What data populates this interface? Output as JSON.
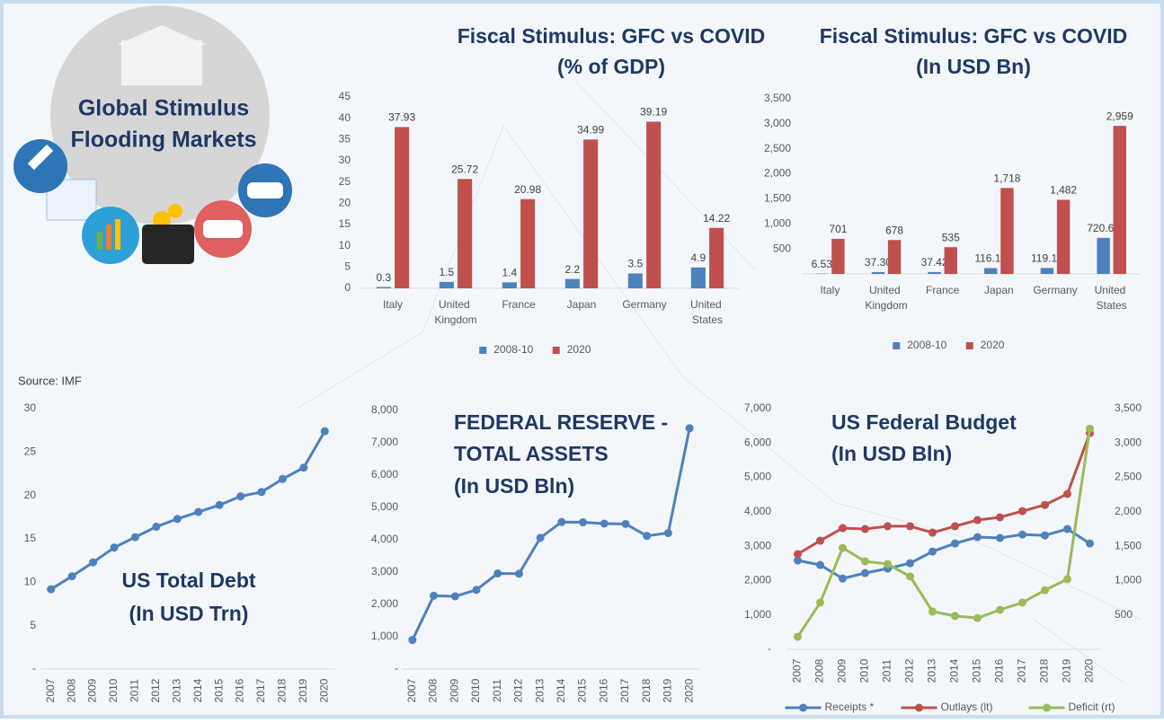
{
  "logo": [
    "Global Stimulus",
    "Flooding Markets"
  ],
  "source": "Source: IMF",
  "chart_data": [
    {
      "type": "bar",
      "title": "Fiscal Stimulus: GFC vs COVID",
      "subtitle": "(% of GDP)",
      "categories": [
        "Italy",
        "United Kingdom",
        "France",
        "Japan",
        "Germany",
        "United States"
      ],
      "series": [
        {
          "name": "2008-10",
          "color": "#4f81bd",
          "values": [
            0.3,
            1.5,
            1.4,
            2.2,
            3.5,
            4.9
          ]
        },
        {
          "name": "2020",
          "color": "#c0504d",
          "values": [
            37.93,
            25.72,
            20.98,
            34.99,
            39.19,
            14.22
          ]
        }
      ],
      "ylim": [
        0,
        45
      ],
      "yticks": [
        0,
        5,
        10,
        15,
        20,
        25,
        30,
        35,
        40,
        45
      ],
      "legend": "bottom"
    },
    {
      "type": "bar",
      "title": "Fiscal Stimulus: GFC vs COVID",
      "subtitle": "(In USD Bn)",
      "categories": [
        "Italy",
        "United Kingdom",
        "France",
        "Japan",
        "Germany",
        "United States"
      ],
      "series": [
        {
          "name": "2008-10",
          "color": "#4f81bd",
          "values": [
            6.53,
            37.3,
            37.42,
            116.19,
            119.16,
            720.68
          ],
          "value_labels": [
            "6.53",
            "37.30",
            "37.42",
            "116.19",
            "119.16",
            "720.68"
          ]
        },
        {
          "name": "2020",
          "color": "#c0504d",
          "values": [
            701,
            678,
            535,
            1718,
            1482,
            2959
          ],
          "value_labels": [
            "701",
            "678",
            "535",
            "1,718",
            "1,482",
            "2,959"
          ]
        }
      ],
      "ylim": [
        0,
        3500
      ],
      "yticks": [
        {
          "value": 500,
          "label": "500"
        },
        {
          "value": 1000,
          "label": "1,000"
        },
        {
          "value": 1500,
          "label": "1,500"
        },
        {
          "value": 2000,
          "label": "2,000"
        },
        {
          "value": 2500,
          "label": "2,500"
        },
        {
          "value": 3000,
          "label": "3,000"
        },
        {
          "value": 3500,
          "label": "3,500"
        }
      ],
      "legend": "bottom"
    },
    {
      "type": "line",
      "title": "US Total Debt",
      "subtitle": "(In USD Trn)",
      "categories": [
        "2007",
        "2008",
        "2009",
        "2010",
        "2011",
        "2012",
        "2013",
        "2014",
        "2015",
        "2016",
        "2017",
        "2018",
        "2019",
        "2020"
      ],
      "values": [
        9.2,
        10.7,
        12.3,
        14.0,
        15.2,
        16.4,
        17.3,
        18.1,
        18.9,
        19.9,
        20.4,
        21.9,
        23.2,
        27.4
      ],
      "color": "#4f81bd",
      "ylim": [
        0,
        30
      ],
      "yticks": [
        {
          "value": 0,
          "label": "-"
        },
        5,
        10,
        15,
        20,
        25,
        30
      ]
    },
    {
      "type": "line",
      "title": [
        "FEDERAL RESERVE -",
        "TOTAL ASSETS"
      ],
      "subtitle": "(In USD Bln)",
      "categories": [
        "2007",
        "2008",
        "2009",
        "2010",
        "2011",
        "2012",
        "2013",
        "2014",
        "2015",
        "2016",
        "2017",
        "2018",
        "2019",
        "2020"
      ],
      "values": [
        900,
        2270,
        2250,
        2450,
        2960,
        2950,
        4060,
        4550,
        4540,
        4500,
        4490,
        4120,
        4210,
        7450
      ],
      "color": "#4f81bd",
      "ylim": [
        0,
        8000
      ],
      "yticks": [
        {
          "value": 0,
          "label": "-"
        },
        {
          "value": 1000,
          "label": "1,000"
        },
        {
          "value": 2000,
          "label": "2,000"
        },
        {
          "value": 3000,
          "label": "3,000"
        },
        {
          "value": 4000,
          "label": "4,000"
        },
        {
          "value": 5000,
          "label": "5,000"
        },
        {
          "value": 6000,
          "label": "6,000"
        },
        {
          "value": 7000,
          "label": "7,000"
        },
        {
          "value": 8000,
          "label": "8,000"
        }
      ]
    },
    {
      "type": "line",
      "title": "US Federal Budget",
      "subtitle": "(In USD Bln)",
      "categories": [
        "2007",
        "2008",
        "2009",
        "2010",
        "2011",
        "2012",
        "2013",
        "2014",
        "2015",
        "2016",
        "2017",
        "2018",
        "2019",
        "2020"
      ],
      "series": [
        {
          "name": "Receipts *",
          "color": "#4f81bd",
          "values": [
            2585,
            2455,
            2060,
            2220,
            2350,
            2505,
            2845,
            3080,
            3265,
            3240,
            3340,
            3315,
            3500,
            3080
          ]
        },
        {
          "name": "Outlays (lt)",
          "color": "#c0504d",
          "values": [
            2770,
            3160,
            3525,
            3500,
            3580,
            3580,
            3395,
            3580,
            3760,
            3840,
            4020,
            4200,
            4520,
            6290
          ]
        },
        {
          "name": "Deficit (rt)",
          "color": "#9bbb59",
          "axis": "y2",
          "values": [
            183,
            680,
            1475,
            1280,
            1240,
            1060,
            550,
            485,
            455,
            575,
            680,
            860,
            1020,
            3210
          ]
        }
      ],
      "ylim": [
        0,
        7000
      ],
      "yticks": [
        {
          "value": 0,
          "label": "-"
        },
        {
          "value": 1000,
          "label": "1,000"
        },
        {
          "value": 2000,
          "label": "2,000"
        },
        {
          "value": 3000,
          "label": "3,000"
        },
        {
          "value": 4000,
          "label": "4,000"
        },
        {
          "value": 5000,
          "label": "5,000"
        },
        {
          "value": 6000,
          "label": "6,000"
        },
        {
          "value": 7000,
          "label": "7,000"
        }
      ],
      "y2lim": [
        0,
        3500
      ],
      "y2ticks": [
        500,
        {
          "value": 1000,
          "label": "1,000"
        },
        {
          "value": 1500,
          "label": "1,500"
        },
        {
          "value": 2000,
          "label": "2,000"
        },
        {
          "value": 2500,
          "label": "2,500"
        },
        {
          "value": 3000,
          "label": "3,000"
        },
        {
          "value": 3500,
          "label": "3,500"
        }
      ],
      "legend": "bottom"
    }
  ]
}
